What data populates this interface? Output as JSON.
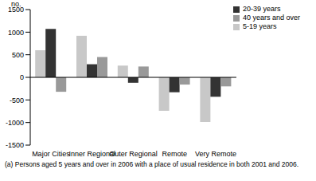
{
  "chart_data": {
    "type": "bar",
    "ylabel": "no.",
    "annotation": "(a) Persons aged 5 years and over in 2006 with a place of usual residence in both 2001 and 2006.",
    "categories": [
      "Major Cities",
      "Inner Regional",
      "Outer Regional",
      "Remote",
      "Very Remote"
    ],
    "series": [
      {
        "name": "5-19 years",
        "color": "#c8c8c8",
        "values": [
          600,
          920,
          260,
          -740,
          -990
        ]
      },
      {
        "name": "20-39 years",
        "color": "#333333",
        "values": [
          1070,
          290,
          -120,
          -330,
          -430
        ]
      },
      {
        "name": "40 years and over",
        "color": "#999999",
        "values": [
          -320,
          450,
          240,
          -160,
          -200
        ]
      }
    ],
    "ylim": [
      -1500,
      1500
    ],
    "yticks": [
      -1500,
      -1000,
      -500,
      0,
      500,
      1000,
      1500
    ],
    "legend": "upper right",
    "grid": false
  }
}
